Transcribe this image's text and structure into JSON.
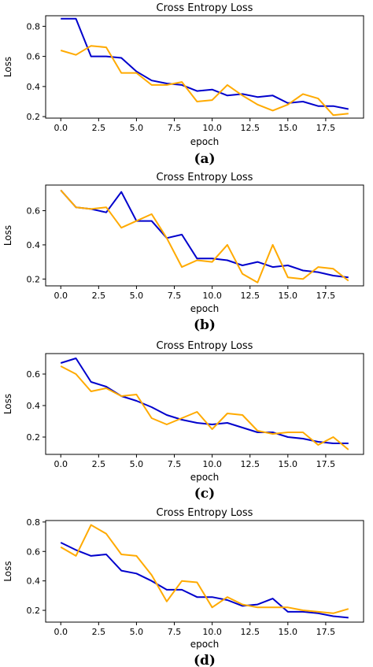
{
  "chart_data": [
    {
      "type": "line",
      "panel_label": "(a)",
      "title": "Cross Entropy Loss",
      "xlabel": "epoch",
      "ylabel": "Loss",
      "xlim": [
        -1,
        20
      ],
      "ylim": [
        0.19,
        0.87
      ],
      "xticks": [
        0.0,
        2.5,
        5.0,
        7.5,
        10.0,
        12.5,
        15.0,
        17.5
      ],
      "xtick_labels": [
        "0.0",
        "2.5",
        "5.0",
        "7.5",
        "10.0",
        "12.5",
        "15.0",
        "17.5"
      ],
      "yticks": [
        0.2,
        0.4,
        0.6,
        0.8
      ],
      "ytick_labels": [
        "0.2",
        "0.4",
        "0.6",
        "0.8"
      ],
      "grid": false,
      "legend": null,
      "x": [
        0,
        1,
        2,
        3,
        4,
        5,
        6,
        7,
        8,
        9,
        10,
        11,
        12,
        13,
        14,
        15,
        16,
        17,
        18,
        19
      ],
      "series": [
        {
          "color": "#0000cc",
          "values": [
            0.85,
            0.85,
            0.6,
            0.6,
            0.59,
            0.5,
            0.44,
            0.42,
            0.41,
            0.37,
            0.38,
            0.34,
            0.35,
            0.33,
            0.34,
            0.29,
            0.3,
            0.27,
            0.27,
            0.25
          ]
        },
        {
          "color": "#ffaa00",
          "values": [
            0.64,
            0.61,
            0.67,
            0.66,
            0.49,
            0.49,
            0.41,
            0.41,
            0.43,
            0.3,
            0.31,
            0.41,
            0.34,
            0.28,
            0.24,
            0.28,
            0.35,
            0.32,
            0.21,
            0.22
          ]
        }
      ]
    },
    {
      "type": "line",
      "panel_label": "(b)",
      "title": "Cross Entropy Loss",
      "xlabel": "epoch",
      "ylabel": "Loss",
      "xlim": [
        -1,
        20
      ],
      "ylim": [
        0.16,
        0.75
      ],
      "xticks": [
        0.0,
        2.5,
        5.0,
        7.5,
        10.0,
        12.5,
        15.0,
        17.5
      ],
      "xtick_labels": [
        "0.0",
        "2.5",
        "5.0",
        "7.5",
        "10.0",
        "12.5",
        "15.0",
        "17.5"
      ],
      "yticks": [
        0.2,
        0.4,
        0.6
      ],
      "ytick_labels": [
        "0.2",
        "0.4",
        "0.6"
      ],
      "grid": false,
      "legend": null,
      "x": [
        0,
        1,
        2,
        3,
        4,
        5,
        6,
        7,
        8,
        9,
        10,
        11,
        12,
        13,
        14,
        15,
        16,
        17,
        18,
        19
      ],
      "series": [
        {
          "color": "#0000cc",
          "values": [
            0.72,
            0.62,
            0.61,
            0.59,
            0.71,
            0.54,
            0.54,
            0.44,
            0.46,
            0.32,
            0.32,
            0.31,
            0.28,
            0.3,
            0.27,
            0.28,
            0.25,
            0.24,
            0.22,
            0.21
          ]
        },
        {
          "color": "#ffaa00",
          "values": [
            0.72,
            0.62,
            0.61,
            0.62,
            0.5,
            0.54,
            0.58,
            0.44,
            0.27,
            0.31,
            0.3,
            0.4,
            0.23,
            0.18,
            0.4,
            0.21,
            0.2,
            0.27,
            0.26,
            0.19
          ]
        }
      ]
    },
    {
      "type": "line",
      "panel_label": "(c)",
      "title": "Cross Entropy Loss",
      "xlabel": "epoch",
      "ylabel": "Loss",
      "xlim": [
        -1,
        20
      ],
      "ylim": [
        0.09,
        0.73
      ],
      "xticks": [
        0.0,
        2.5,
        5.0,
        7.5,
        10.0,
        12.5,
        15.0,
        17.5
      ],
      "xtick_labels": [
        "0.0",
        "2.5",
        "5.0",
        "7.5",
        "10.0",
        "12.5",
        "15.0",
        "17.5"
      ],
      "yticks": [
        0.2,
        0.4,
        0.6
      ],
      "ytick_labels": [
        "0.2",
        "0.4",
        "0.6"
      ],
      "grid": false,
      "legend": null,
      "x": [
        0,
        1,
        2,
        3,
        4,
        5,
        6,
        7,
        8,
        9,
        10,
        11,
        12,
        13,
        14,
        15,
        16,
        17,
        18,
        19
      ],
      "series": [
        {
          "color": "#0000cc",
          "values": [
            0.67,
            0.7,
            0.55,
            0.52,
            0.46,
            0.43,
            0.39,
            0.34,
            0.31,
            0.29,
            0.28,
            0.29,
            0.26,
            0.23,
            0.23,
            0.2,
            0.19,
            0.17,
            0.16,
            0.16
          ]
        },
        {
          "color": "#ffaa00",
          "values": [
            0.65,
            0.6,
            0.49,
            0.51,
            0.46,
            0.47,
            0.32,
            0.28,
            0.32,
            0.36,
            0.25,
            0.35,
            0.34,
            0.24,
            0.22,
            0.23,
            0.23,
            0.15,
            0.2,
            0.12
          ]
        }
      ]
    },
    {
      "type": "line",
      "panel_label": "(d)",
      "title": "Cross Entropy Loss",
      "xlabel": "epoch",
      "ylabel": "Loss",
      "xlim": [
        -1,
        20
      ],
      "ylim": [
        0.12,
        0.81
      ],
      "xticks": [
        0.0,
        2.5,
        5.0,
        7.5,
        10.0,
        12.5,
        15.0,
        17.5
      ],
      "xtick_labels": [
        "0.0",
        "2.5",
        "5.0",
        "7.5",
        "10.0",
        "12.5",
        "15.0",
        "17.5"
      ],
      "yticks": [
        0.2,
        0.4,
        0.6,
        0.8
      ],
      "ytick_labels": [
        "0.2",
        "0.4",
        "0.6",
        "0.8"
      ],
      "grid": false,
      "legend": null,
      "x": [
        0,
        1,
        2,
        3,
        4,
        5,
        6,
        7,
        8,
        9,
        10,
        11,
        12,
        13,
        14,
        15,
        16,
        17,
        18,
        19
      ],
      "series": [
        {
          "color": "#0000cc",
          "values": [
            0.66,
            0.61,
            0.57,
            0.58,
            0.47,
            0.45,
            0.4,
            0.34,
            0.34,
            0.29,
            0.29,
            0.27,
            0.23,
            0.24,
            0.28,
            0.19,
            0.19,
            0.18,
            0.16,
            0.15
          ]
        },
        {
          "color": "#ffaa00",
          "values": [
            0.63,
            0.57,
            0.78,
            0.72,
            0.58,
            0.57,
            0.44,
            0.26,
            0.4,
            0.39,
            0.22,
            0.29,
            0.24,
            0.22,
            0.22,
            0.22,
            0.2,
            0.19,
            0.18,
            0.21
          ]
        }
      ]
    }
  ]
}
